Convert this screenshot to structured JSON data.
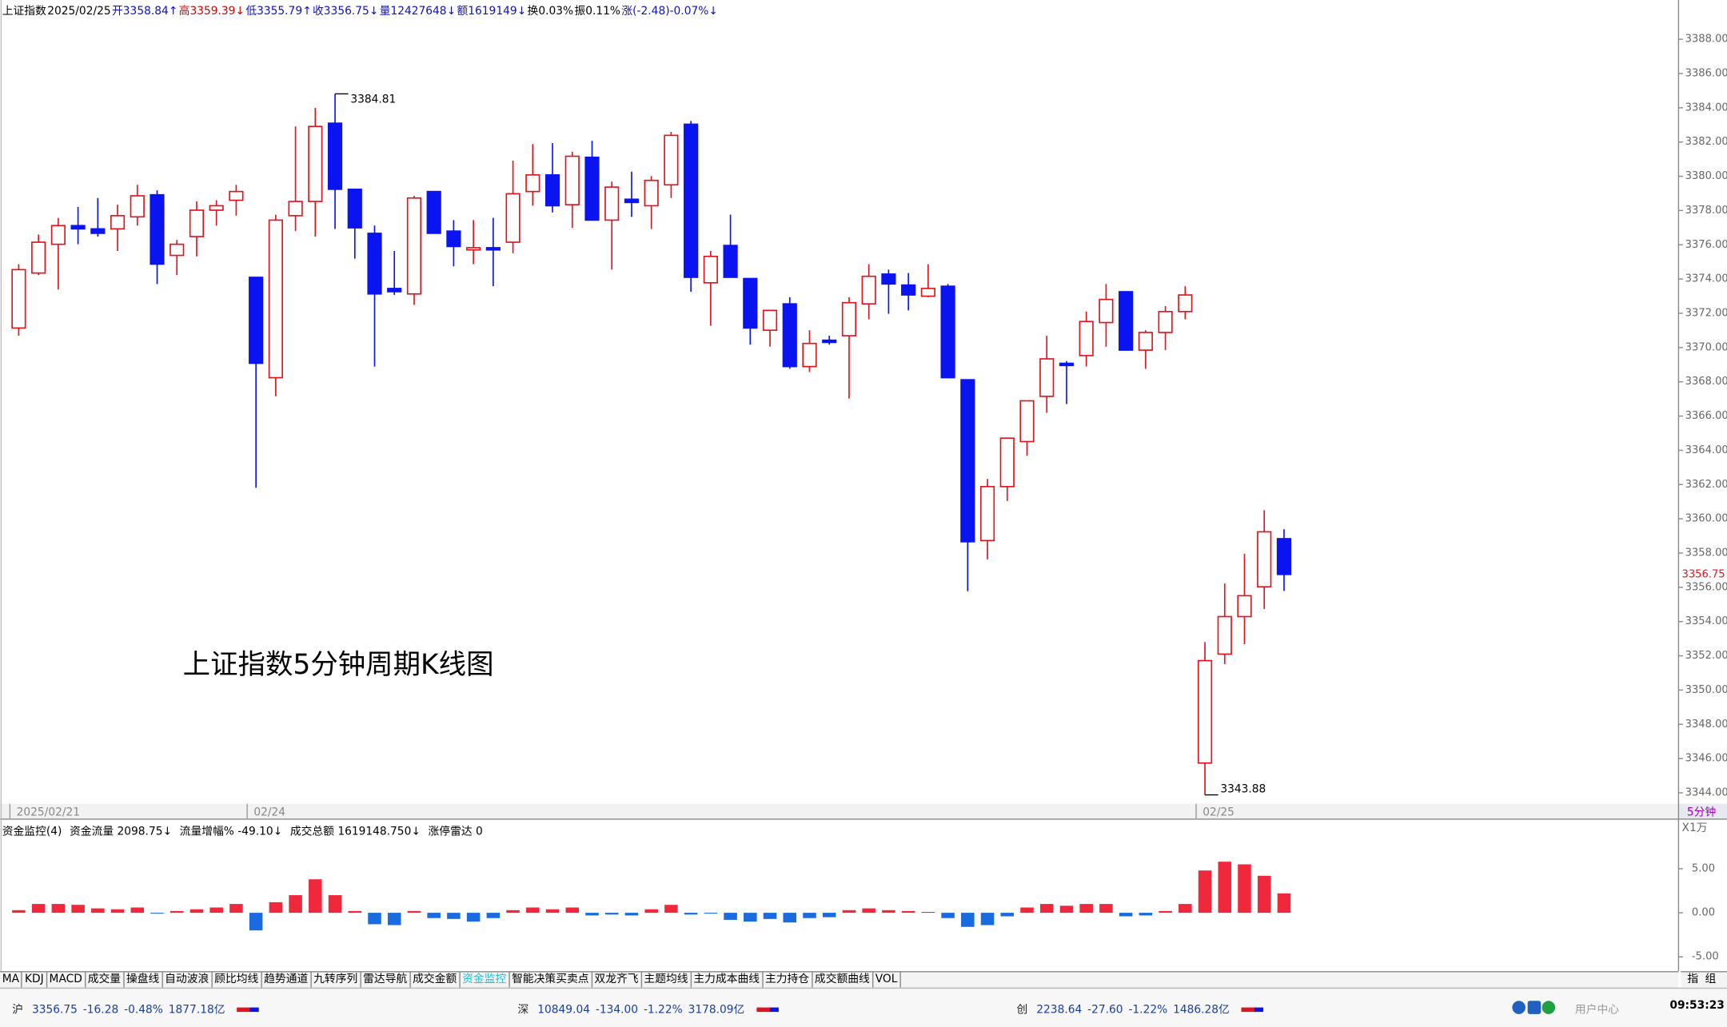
{
  "header": {
    "items": [
      "上证指数",
      "2025/02/25",
      "开3358.84↑",
      "高3359.39↓",
      "低3355.79↑",
      "收3356.75↓",
      "量12427648↓",
      "额1619149↓",
      "换0.03%",
      "振0.11%",
      "涨(-2.48)-0.07%↓"
    ],
    "colors": [
      "#000000",
      "#000000",
      "#1010c0",
      "#d00000",
      "#1010c0",
      "#1010c0",
      "#1010c0",
      "#1010c0",
      "#000000",
      "#000000",
      "#1010c0"
    ]
  },
  "caption": "上证指数5分钟周期K线图",
  "period": "5分钟",
  "indicator_info": [
    "资金监控(4)",
    "资金流量 2098.75↓",
    "流量增幅% -49.10↓",
    "成交总额 1619148.750↓",
    "涨停雷达 0"
  ],
  "unit": "X1万",
  "tabs": [
    "MA",
    "KDJ",
    "MACD",
    "成交量",
    "操盘线",
    "自动波浪",
    "顾比均线",
    "趋势通道",
    "九转序列",
    "雷达导航",
    "成交金额",
    "资金监控",
    "智能决策买卖点",
    "双龙齐飞",
    "主题均线",
    "主力成本曲线",
    "主力持仓",
    "成交额曲线",
    "VOL"
  ],
  "active_tab": "资金监控",
  "tab_right": [
    "指",
    "组"
  ],
  "status": {
    "markets": [
      [
        "沪",
        "3356.75",
        "-16.28",
        "-0.48%",
        "1877.18亿"
      ],
      [
        "深",
        "10849.04",
        "-134.00",
        "-1.22%",
        "3178.09亿"
      ],
      [
        "创",
        "2238.64",
        "-27.60",
        "-1.22%",
        "1486.28亿"
      ]
    ],
    "user": "用户中心",
    "time": "09:53:23"
  },
  "chart_data": [
    {
      "type": "candlestick",
      "up_color": "#e0141e",
      "down_color": "#0a14f0",
      "categories": [
        "2025/02/21",
        null,
        null,
        null,
        null,
        null,
        null,
        null,
        null,
        null,
        null,
        null,
        "02/24",
        null,
        null,
        null,
        null,
        null,
        null,
        null,
        null,
        null,
        null,
        null,
        null,
        null,
        null,
        null,
        null,
        null,
        null,
        null,
        null,
        null,
        null,
        null,
        null,
        null,
        null,
        null,
        null,
        null,
        null,
        null,
        null,
        null,
        null,
        null,
        null,
        null,
        null,
        null,
        null,
        null,
        null,
        null,
        null,
        null,
        null,
        null,
        "02/25",
        null,
        null,
        null,
        null
      ],
      "open": [
        3371.14,
        3374.35,
        3376.03,
        3377.12,
        3376.93,
        3376.93,
        3377.63,
        3378.92,
        3375.38,
        3376.48,
        3378.02,
        3378.6,
        3374.1,
        3368.24,
        3377.7,
        3378.53,
        3383.1,
        3379.24,
        3376.67,
        3373.45,
        3373.13,
        3379.11,
        3376.8,
        3375.7,
        3375.83,
        3376.15,
        3379.11,
        3380.08,
        3378.34,
        3381.11,
        3377.44,
        3378.66,
        3378.28,
        3379.5,
        3383.04,
        3373.78,
        3375.96,
        3374.03,
        3371.01,
        3372.55,
        3368.89,
        3370.43,
        3370.69,
        3372.55,
        3374.29,
        3373.65,
        3373.0,
        3373.58,
        3368.12,
        3358.73,
        3361.88,
        3364.51,
        3367.15,
        3369.08,
        3369.53,
        3371.46,
        3373.26,
        3369.85,
        3370.88,
        3372.1,
        3345.74,
        3352.1,
        3354.29,
        3356.03,
        3358.84
      ],
      "high": [
        3374.87,
        3376.6,
        3377.57,
        3378.21,
        3378.73,
        3378.34,
        3379.5,
        3379.18,
        3376.28,
        3378.53,
        3378.6,
        3379.5,
        3374.1,
        3377.76,
        3382.91,
        3384.0,
        3384.81,
        3379.24,
        3377.12,
        3375.64,
        3378.86,
        3379.11,
        3377.44,
        3377.44,
        3377.57,
        3380.91,
        3381.88,
        3381.94,
        3381.43,
        3382.07,
        3379.69,
        3380.27,
        3380.01,
        3382.59,
        3383.23,
        3375.64,
        3377.76,
        3374.03,
        3372.17,
        3372.94,
        3371.01,
        3370.69,
        3372.94,
        3374.87,
        3374.55,
        3374.35,
        3374.87,
        3373.71,
        3368.12,
        3362.33,
        3364.71,
        3366.89,
        3370.69,
        3369.21,
        3372.1,
        3373.71,
        3373.26,
        3371.01,
        3372.42,
        3373.58,
        3352.81,
        3356.22,
        3357.96,
        3360.5,
        3359.39
      ],
      "low": [
        3370.69,
        3374.23,
        3373.39,
        3376.03,
        3376.48,
        3375.64,
        3377.12,
        3373.71,
        3374.23,
        3375.32,
        3377.12,
        3377.7,
        3361.81,
        3367.15,
        3376.8,
        3376.48,
        3376.93,
        3375.19,
        3368.89,
        3373.07,
        3372.49,
        3376.67,
        3374.74,
        3374.87,
        3373.58,
        3375.51,
        3378.28,
        3377.89,
        3376.99,
        3377.44,
        3374.55,
        3377.63,
        3376.93,
        3378.73,
        3373.26,
        3371.27,
        3374.1,
        3370.17,
        3370.05,
        3368.76,
        3368.57,
        3370.17,
        3367.02,
        3371.65,
        3371.97,
        3372.17,
        3372.94,
        3368.24,
        3355.77,
        3357.63,
        3361.04,
        3363.68,
        3366.19,
        3366.7,
        3368.89,
        3370.05,
        3369.85,
        3368.76,
        3369.85,
        3371.65,
        3343.88,
        3351.52,
        3352.68,
        3354.74,
        3355.79
      ],
      "close": [
        3374.55,
        3376.15,
        3377.12,
        3376.93,
        3376.67,
        3377.7,
        3378.86,
        3374.87,
        3376.03,
        3378.02,
        3378.28,
        3379.11,
        3369.08,
        3377.44,
        3378.53,
        3382.91,
        3379.24,
        3376.99,
        3373.13,
        3373.26,
        3378.73,
        3376.67,
        3375.9,
        3375.83,
        3375.7,
        3378.98,
        3380.08,
        3378.28,
        3381.17,
        3377.44,
        3379.37,
        3378.47,
        3379.76,
        3382.39,
        3374.1,
        3375.32,
        3374.1,
        3371.14,
        3372.17,
        3368.89,
        3370.24,
        3370.3,
        3372.62,
        3374.16,
        3373.71,
        3373.07,
        3373.45,
        3368.24,
        3358.66,
        3361.88,
        3364.71,
        3366.89,
        3369.34,
        3368.95,
        3371.52,
        3372.81,
        3369.85,
        3370.88,
        3372.1,
        3373.07,
        3351.72,
        3354.29,
        3355.51,
        3359.24,
        3356.75
      ],
      "ylim": [
        3343.36,
        3389.2
      ],
      "yticks": [
        {
          "value": 3344,
          "label": "3344.00"
        },
        {
          "value": 3346,
          "label": "3346.00"
        },
        {
          "value": 3348,
          "label": "3348.00"
        },
        {
          "value": 3350,
          "label": "3350.00"
        },
        {
          "value": 3352,
          "label": "3352.00"
        },
        {
          "value": 3354,
          "label": "3354.00"
        },
        {
          "value": 3356,
          "label": "3356.00"
        },
        {
          "value": 3358,
          "label": "3358.00"
        },
        {
          "value": 3360,
          "label": "3360.00"
        },
        {
          "value": 3362,
          "label": "3362.00"
        },
        {
          "value": 3364,
          "label": "3364.00"
        },
        {
          "value": 3366,
          "label": "3366.00"
        },
        {
          "value": 3368,
          "label": "3368.00"
        },
        {
          "value": 3370,
          "label": "3370.00"
        },
        {
          "value": 3372,
          "label": "3372.00"
        },
        {
          "value": 3374,
          "label": "3374.00"
        },
        {
          "value": 3376,
          "label": "3376.00"
        },
        {
          "value": 3378,
          "label": "3378.00"
        },
        {
          "value": 3380,
          "label": "3380.00"
        },
        {
          "value": 3382,
          "label": "3382.00"
        },
        {
          "value": 3384,
          "label": "3384.00"
        },
        {
          "value": 3386,
          "label": "3386.00"
        },
        {
          "value": 3388,
          "label": "3388.00"
        }
      ]
    },
    {
      "type": "bar",
      "up_color": "#f0283c",
      "down_color": "#1a6ae0",
      "values": [
        0.3,
        1.0,
        1.0,
        0.9,
        0.5,
        0.4,
        0.6,
        -0.1,
        0.2,
        0.4,
        0.6,
        1.0,
        -2.0,
        1.2,
        2.0,
        3.8,
        2.0,
        0.2,
        -1.3,
        -1.4,
        0.2,
        -0.6,
        -0.7,
        -1.0,
        -0.6,
        0.3,
        0.6,
        0.4,
        0.6,
        -0.3,
        -0.2,
        -0.3,
        0.4,
        0.9,
        -0.2,
        -0.1,
        -0.8,
        -1.0,
        -0.7,
        -1.1,
        -0.6,
        -0.5,
        0.3,
        0.5,
        0.3,
        0.2,
        0.1,
        -0.6,
        -1.6,
        -1.4,
        -0.4,
        0.6,
        1.0,
        0.8,
        1.0,
        1.0,
        -0.4,
        -0.3,
        0.2,
        1.0,
        4.8,
        5.8,
        5.5,
        4.2,
        2.2
      ],
      "ylim": [
        -6.375,
        8.625
      ],
      "yticks": [
        {
          "value": -5,
          "label": "-5.00"
        },
        {
          "value": 0,
          "label": "0.00"
        },
        {
          "value": 5,
          "label": "5.00"
        }
      ]
    }
  ]
}
